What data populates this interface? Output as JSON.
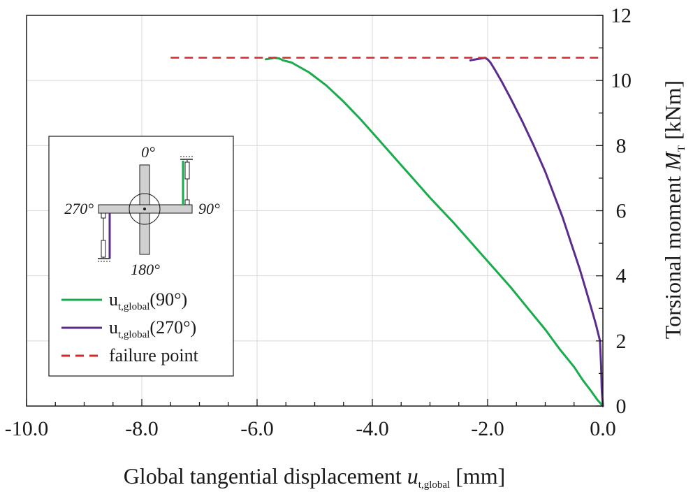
{
  "chart_data": {
    "type": "line",
    "xlabel": {
      "prefix": "Global tangential displacement ",
      "var": "u",
      "sub": "t,global",
      "unit": " [mm]"
    },
    "ylabel": {
      "prefix": "Torsional moment ",
      "var": "M",
      "sub": "T",
      "unit": " [kNm]"
    },
    "xlim": [
      -10.0,
      0.0
    ],
    "ylim": [
      0,
      12
    ],
    "x_ticks": [
      "-10.0",
      "-8.0",
      "-6.0",
      "-4.0",
      "-2.0",
      "0.0"
    ],
    "x_tick_values": [
      -10,
      -8,
      -6,
      -4,
      -2,
      0
    ],
    "y_ticks": [
      "0",
      "2",
      "4",
      "6",
      "8",
      "10",
      "12"
    ],
    "y_tick_values": [
      0,
      2,
      4,
      6,
      8,
      10,
      12
    ],
    "grid": true,
    "y_axis_side": "right",
    "legend_position": "left",
    "series": [
      {
        "name": {
          "base": "u",
          "sub": "t,global",
          "tail": "(90°)"
        },
        "color": "#1aab4d",
        "style": "solid",
        "x": [
          0.0,
          -0.1,
          -0.2,
          -0.35,
          -0.5,
          -0.75,
          -1.0,
          -1.3,
          -1.6,
          -2.0,
          -2.3,
          -2.6,
          -3.0,
          -3.3,
          -3.6,
          -3.9,
          -4.2,
          -4.5,
          -4.8,
          -5.1,
          -5.4,
          -5.55,
          -5.62,
          -5.7,
          -5.85
        ],
        "y": [
          0.0,
          0.2,
          0.45,
          0.8,
          1.2,
          1.75,
          2.35,
          3.0,
          3.65,
          4.45,
          5.05,
          5.65,
          6.4,
          7.0,
          7.6,
          8.2,
          8.8,
          9.35,
          9.85,
          10.25,
          10.55,
          10.62,
          10.68,
          10.7,
          10.65
        ]
      },
      {
        "name": {
          "base": "u",
          "sub": "t,global",
          "tail": "(270°)"
        },
        "color": "#5a2d8c",
        "style": "solid",
        "x": [
          0.0,
          -0.02,
          -0.03,
          -0.05,
          -0.12,
          -0.2,
          -0.3,
          -0.4,
          -0.55,
          -0.7,
          -0.85,
          -1.0,
          -1.2,
          -1.4,
          -1.6,
          -1.75,
          -1.88,
          -1.95,
          -2.0,
          -2.05,
          -2.1,
          -2.2,
          -2.3
        ],
        "y": [
          0.0,
          0.5,
          1.2,
          2.0,
          2.5,
          3.0,
          3.6,
          4.2,
          5.0,
          5.8,
          6.5,
          7.2,
          8.0,
          8.75,
          9.45,
          9.95,
          10.35,
          10.55,
          10.65,
          10.7,
          10.68,
          10.65,
          10.62
        ]
      },
      {
        "name": {
          "base": "failure point",
          "sub": "",
          "tail": ""
        },
        "color": "#d42a2a",
        "style": "dashed",
        "x": [
          -7.5,
          0.0
        ],
        "y": [
          10.7,
          10.7
        ]
      }
    ],
    "inset_labels": {
      "top": "0°",
      "right": "90°",
      "bottom": "180°",
      "left": "270°"
    }
  }
}
